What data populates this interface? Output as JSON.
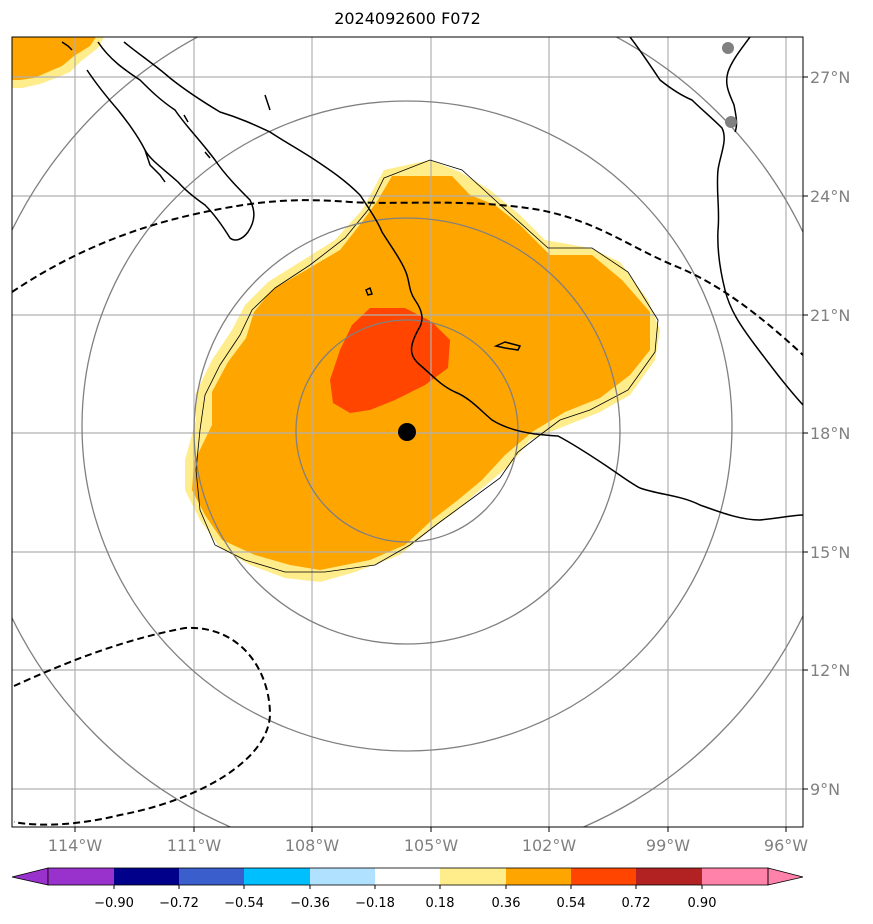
{
  "title": "2024092600 F072",
  "map": {
    "lat_labels": [
      "27°N",
      "24°N",
      "21°N",
      "18°N",
      "15°N",
      "12°N",
      "9°N"
    ],
    "lon_labels": [
      "114°W",
      "111°W",
      "108°W",
      "105°W",
      "102°W",
      "99°W",
      "96°W"
    ],
    "extent": {
      "lon_min": -115.6,
      "lon_max": -95.4,
      "lat_min": 7.9,
      "lat_max": 28.0
    },
    "storm_center": {
      "lon": -105.7,
      "lat": 18.0
    },
    "range_rings": "concentric rings centered on storm",
    "grid": true,
    "colors": {
      "grid": "#b0b0b0",
      "ring": "#808080",
      "coast": "#000000",
      "contour_dashed": "#000000"
    }
  },
  "colorbar": {
    "tick_labels": [
      "−0.90",
      "−0.72",
      "−0.54",
      "−0.36",
      "−0.18",
      "0.18",
      "0.36",
      "0.54",
      "0.72",
      "0.90"
    ],
    "colors": [
      "#9932cc",
      "#00008b",
      "#3a5fcd",
      "#00bfff",
      "#b0e2ff",
      "#ffffff",
      "#ffec8b",
      "#ffa500",
      "#ff4500",
      "#b22222",
      "#ff82ab"
    ]
  }
}
